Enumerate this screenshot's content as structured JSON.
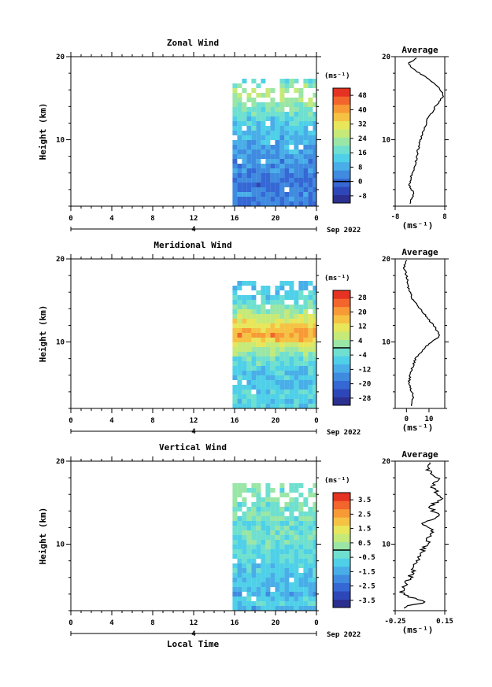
{
  "chart_data": [
    {
      "type": "heatmap",
      "title": "Zonal Wind",
      "ylabel": "Height (km)",
      "ylim": [
        2,
        20
      ],
      "yticks": [
        "10",
        "20"
      ],
      "xlim": [
        0,
        24
      ],
      "xticks": [
        "0",
        "4",
        "8",
        "12",
        "16",
        "20",
        "0"
      ],
      "date_marker": "4",
      "date_label": "Sep 2022",
      "data_start_hour": 15.8,
      "colorbar": {
        "unit": "(ms⁻¹)",
        "ticks": [
          "48",
          "40",
          "32",
          "24",
          "16",
          "8",
          "0",
          "-8"
        ],
        "range": [
          -12,
          52
        ]
      },
      "profile": {
        "title": "Average",
        "xlabel": "(ms⁻¹)",
        "xticks": [
          "-8",
          "8"
        ],
        "xlim": [
          -8,
          8
        ],
        "ylim": [
          2,
          20
        ],
        "yticks": [
          "10",
          "20"
        ],
        "points": [
          [
            -3,
            2.5
          ],
          [
            -2,
            3.5
          ],
          [
            -3.5,
            4.5
          ],
          [
            -3,
            5.5
          ],
          [
            -1.5,
            7
          ],
          [
            -0.5,
            9
          ],
          [
            1,
            11
          ],
          [
            2.5,
            12.5
          ],
          [
            5,
            14
          ],
          [
            7.5,
            15.2
          ],
          [
            6.5,
            16.2
          ],
          [
            2,
            17.5
          ],
          [
            -2,
            18.5
          ],
          [
            -4,
            19.2
          ],
          [
            -1,
            19.8
          ]
        ]
      }
    },
    {
      "type": "heatmap",
      "title": "Meridional Wind",
      "ylabel": "Height (km)",
      "ylim": [
        2,
        20
      ],
      "yticks": [
        "10",
        "20"
      ],
      "xlim": [
        0,
        24
      ],
      "xticks": [
        "0",
        "4",
        "8",
        "12",
        "16",
        "20",
        "0"
      ],
      "date_marker": "4",
      "date_label": "Sep 2022",
      "data_start_hour": 15.8,
      "colorbar": {
        "unit": "(ms⁻¹)",
        "ticks": [
          "28",
          "20",
          "12",
          "4",
          "-4",
          "-12",
          "-20",
          "-28"
        ],
        "range": [
          -32,
          32
        ]
      },
      "profile": {
        "title": "Average",
        "xlabel": "(ms⁻¹)",
        "xticks": [
          "0",
          "10"
        ],
        "xlim": [
          -5,
          17
        ],
        "ylim": [
          2,
          20
        ],
        "yticks": [
          "10",
          "20"
        ],
        "points": [
          [
            2,
            2.5
          ],
          [
            3,
            3.5
          ],
          [
            1,
            5
          ],
          [
            2,
            6.5
          ],
          [
            4,
            8
          ],
          [
            9,
            9.5
          ],
          [
            15,
            10.8
          ],
          [
            12,
            12
          ],
          [
            9,
            13
          ],
          [
            6,
            14
          ],
          [
            3,
            15
          ],
          [
            1,
            16.5
          ],
          [
            0,
            18
          ],
          [
            -1,
            19
          ],
          [
            0,
            19.8
          ]
        ]
      }
    },
    {
      "type": "heatmap",
      "title": "Vertical Wind",
      "ylabel": "Height (km)",
      "xlabel": "Local Time",
      "ylim": [
        2,
        20
      ],
      "yticks": [
        "10",
        "20"
      ],
      "xlim": [
        0,
        24
      ],
      "xticks": [
        "0",
        "4",
        "8",
        "12",
        "16",
        "20",
        "0"
      ],
      "date_marker": "4",
      "date_label": "Sep 2022",
      "data_start_hour": 15.8,
      "colorbar": {
        "unit": "(ms⁻¹)",
        "ticks": [
          "3.5",
          "2.5",
          "1.5",
          "0.5",
          "-0.5",
          "-1.5",
          "-2.5",
          "-3.5"
        ],
        "range": [
          -4,
          4
        ]
      },
      "profile": {
        "title": "Average",
        "xlabel": "(ms⁻¹)",
        "xticks": [
          "-0.25",
          "0.15"
        ],
        "xlim": [
          -0.25,
          0.15
        ],
        "ylim": [
          2,
          20
        ],
        "yticks": [
          "10",
          "20"
        ],
        "points": [
          [
            -0.18,
            2.5
          ],
          [
            0.0,
            3
          ],
          [
            -0.2,
            4
          ],
          [
            -0.15,
            5.5
          ],
          [
            -0.1,
            7
          ],
          [
            -0.05,
            8.5
          ],
          [
            0.0,
            10
          ],
          [
            0.05,
            11.5
          ],
          [
            -0.02,
            12.5
          ],
          [
            0.1,
            13.5
          ],
          [
            0.02,
            14.5
          ],
          [
            0.12,
            15.5
          ],
          [
            0.05,
            17
          ],
          [
            0.1,
            18
          ],
          [
            0.0,
            19
          ],
          [
            0.05,
            19.8
          ]
        ]
      }
    }
  ]
}
